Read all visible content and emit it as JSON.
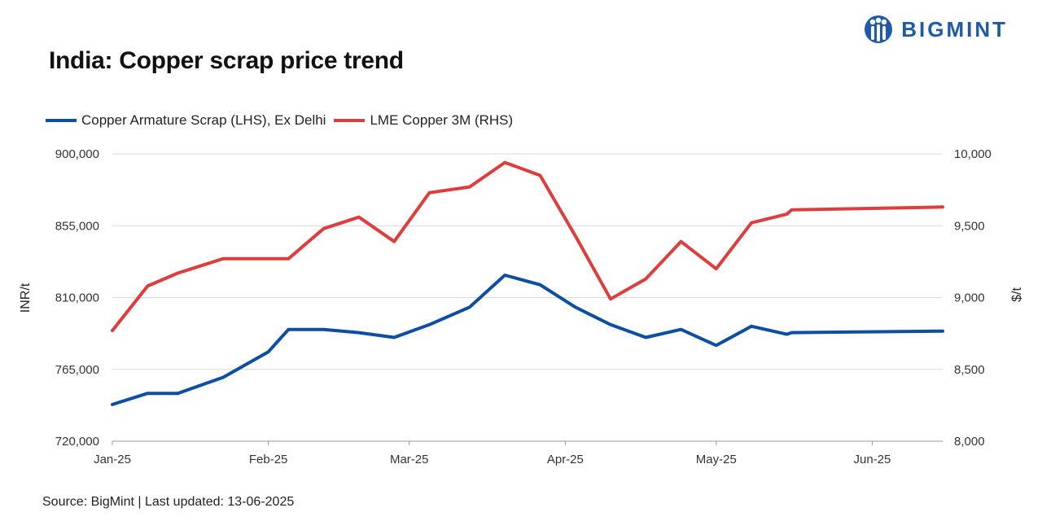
{
  "title": "India: Copper scrap price trend",
  "brand": {
    "name": "BIGMINT",
    "color": "#1f5aa6"
  },
  "source": "Source: BigMint | Last updated: 13-06-2025",
  "chart_data": {
    "type": "line",
    "title": "India: Copper scrap price trend",
    "xlabel": "",
    "ylabel_left": "INR/t",
    "ylabel_right": "$/t",
    "ylim_left": [
      720000,
      900000
    ],
    "ylim_right": [
      8000,
      10000
    ],
    "yticks_left": [
      "720,000",
      "765,000",
      "810,000",
      "855,000",
      "900,000"
    ],
    "yticks_right": [
      "8,000",
      "8,500",
      "9,000",
      "9,500",
      "10,000"
    ],
    "x_range_days": [
      0,
      165
    ],
    "xticks": [
      {
        "label": "Jan-25",
        "day": 0
      },
      {
        "label": "Feb-25",
        "day": 31
      },
      {
        "label": "Mar-25",
        "day": 59
      },
      {
        "label": "Apr-25",
        "day": 90
      },
      {
        "label": "May-25",
        "day": 120
      },
      {
        "label": "Jun-25",
        "day": 151
      }
    ],
    "legend_position": "top-left",
    "series": [
      {
        "name": "Copper Armature Scrap (LHS), Ex Delhi",
        "axis": "left",
        "color": "#0b4ea2",
        "points": [
          [
            0,
            743000
          ],
          [
            7,
            750000
          ],
          [
            13,
            750000
          ],
          [
            22,
            760000
          ],
          [
            31,
            776000
          ],
          [
            35,
            790000
          ],
          [
            42,
            790000
          ],
          [
            49,
            788000
          ],
          [
            56,
            785000
          ],
          [
            63,
            793000
          ],
          [
            71,
            804000
          ],
          [
            78,
            824000
          ],
          [
            85,
            818000
          ],
          [
            92,
            804000
          ],
          [
            99,
            793000
          ],
          [
            106,
            785000
          ],
          [
            113,
            790000
          ],
          [
            120,
            780000
          ],
          [
            127,
            792000
          ],
          [
            134,
            787000
          ],
          [
            135,
            788000
          ],
          [
            165,
            789000
          ]
        ]
      },
      {
        "name": "LME Copper 3M (RHS)",
        "axis": "right",
        "color": "#e03c3c",
        "points": [
          [
            0,
            8770
          ],
          [
            7,
            9080
          ],
          [
            13,
            9170
          ],
          [
            22,
            9270
          ],
          [
            35,
            9270
          ],
          [
            42,
            9480
          ],
          [
            49,
            9560
          ],
          [
            56,
            9390
          ],
          [
            63,
            9730
          ],
          [
            71,
            9770
          ],
          [
            78,
            9940
          ],
          [
            85,
            9850
          ],
          [
            92,
            9430
          ],
          [
            99,
            8990
          ],
          [
            106,
            9130
          ],
          [
            113,
            9390
          ],
          [
            120,
            9200
          ],
          [
            127,
            9520
          ],
          [
            134,
            9580
          ],
          [
            135,
            9610
          ],
          [
            165,
            9630
          ]
        ]
      }
    ]
  }
}
